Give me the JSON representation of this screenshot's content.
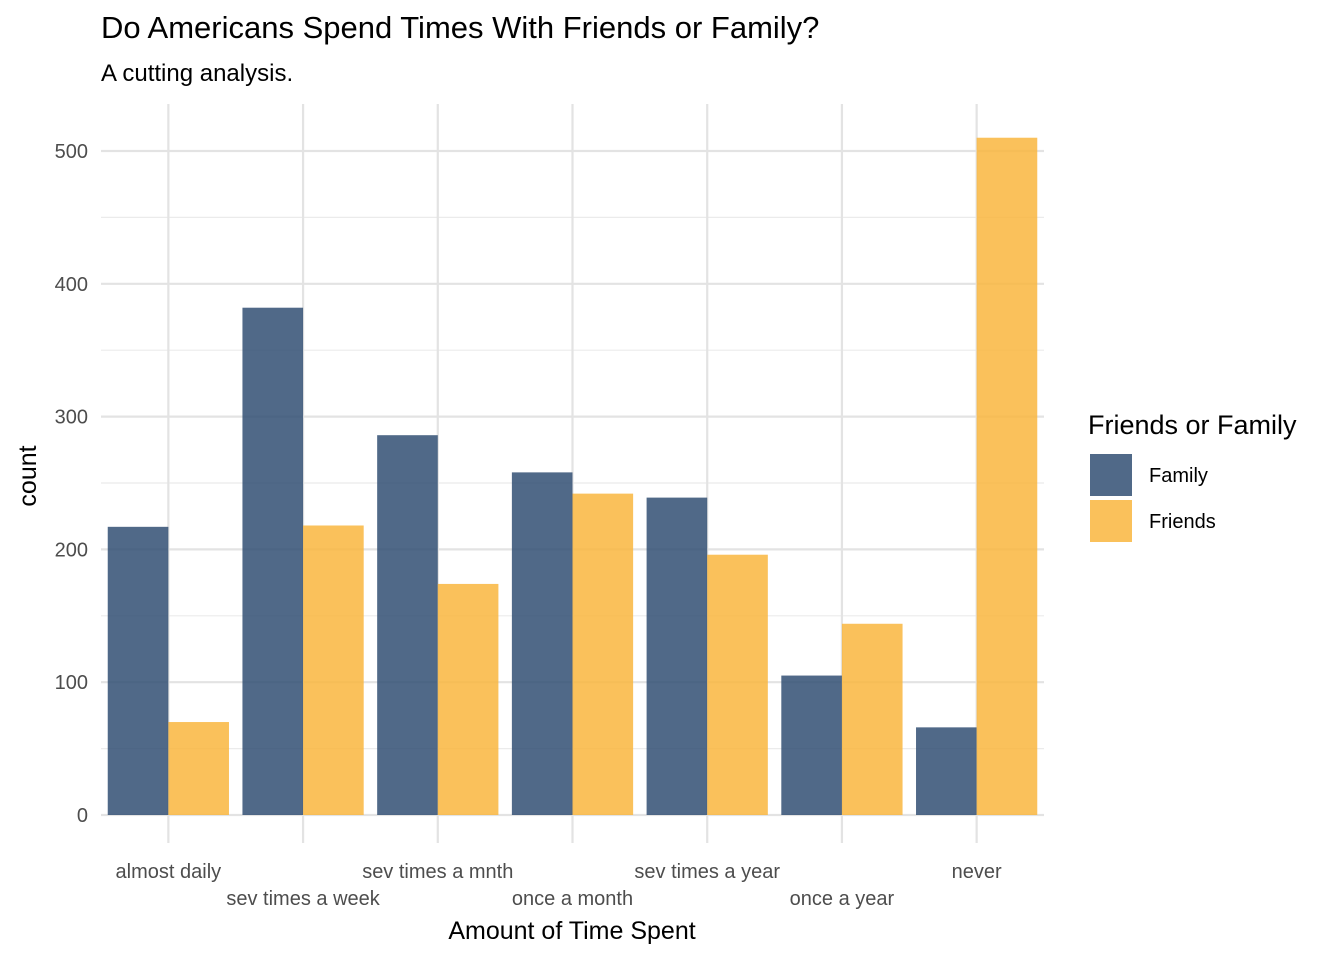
{
  "chart_data": {
    "type": "bar",
    "title": "Do Americans Spend Times With Friends or Family?",
    "subtitle": "A cutting analysis.",
    "xlabel": "Amount of Time Spent",
    "ylabel": "count",
    "categories": [
      "almost daily",
      "sev times a week",
      "sev times a mnth",
      "once a month",
      "sev times a year",
      "once a year",
      "never"
    ],
    "series": [
      {
        "name": "Family",
        "color": "#2c4a70",
        "values": [
          217,
          382,
          286,
          258,
          239,
          105,
          66
        ]
      },
      {
        "name": "Friends",
        "color": "#f9b53a",
        "values": [
          70,
          218,
          174,
          242,
          196,
          144,
          510
        ]
      }
    ],
    "ylim": [
      0,
      520
    ],
    "yticks": [
      0,
      100,
      200,
      300,
      400,
      500
    ],
    "grid": true,
    "bar_opacity": 0.83,
    "legend": {
      "title": "Friends or Family",
      "position": "right"
    }
  }
}
